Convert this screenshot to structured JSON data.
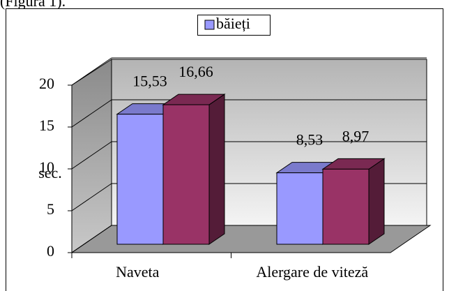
{
  "caption": "(Figura 1).",
  "chart_data": {
    "type": "bar3d",
    "categories": [
      "Naveta",
      "Alergare de viteză"
    ],
    "series": [
      {
        "name": "băieți",
        "color": "#9999ff",
        "values": [
          15.53,
          8.53
        ],
        "value_labels": [
          "15,53",
          "8,53"
        ]
      },
      {
        "color": "#993366",
        "values": [
          16.66,
          8.97
        ],
        "value_labels": [
          "16,66",
          "8,97"
        ]
      }
    ],
    "ylabel": "sec.",
    "ylim": [
      0,
      20
    ],
    "yticks": [
      0,
      5,
      10,
      15,
      20
    ],
    "grid": true,
    "legend": "top"
  }
}
